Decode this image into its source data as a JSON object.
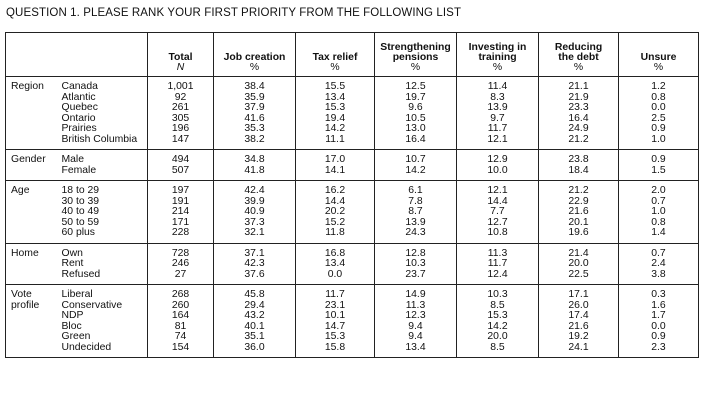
{
  "title": "QUESTION 1. PLEASE RANK YOUR FIRST PRIORITY FROM THE FOLLOWING LIST",
  "columns": [
    {
      "label": "Total",
      "unit": "N",
      "unit_italic": true
    },
    {
      "label": "Job creation",
      "unit": "%"
    },
    {
      "label": "Tax relief",
      "unit": "%"
    },
    {
      "label": "Strengthening pensions",
      "label_lines": [
        "Strengthening",
        "pensions"
      ],
      "unit": "%"
    },
    {
      "label": "Investing in training",
      "label_lines": [
        "Investing in",
        "training"
      ],
      "unit": "%"
    },
    {
      "label": "Reducing the debt",
      "label_lines": [
        "Reducing",
        "the debt"
      ],
      "unit": "%"
    },
    {
      "label": "Unsure",
      "unit": "%"
    }
  ],
  "groups": [
    {
      "name": "Region",
      "rows": [
        {
          "label": "Canada",
          "values": [
            "1,001",
            "38.4",
            "15.5",
            "12.5",
            "11.4",
            "21.1",
            "1.2"
          ]
        },
        {
          "label": "Atlantic",
          "values": [
            "92",
            "35.9",
            "13.4",
            "19.7",
            "8.3",
            "21.9",
            "0.8"
          ]
        },
        {
          "label": "Quebec",
          "values": [
            "261",
            "37.9",
            "15.3",
            "9.6",
            "13.9",
            "23.3",
            "0.0"
          ]
        },
        {
          "label": "Ontario",
          "values": [
            "305",
            "41.6",
            "19.4",
            "10.5",
            "9.7",
            "16.4",
            "2.5"
          ]
        },
        {
          "label": "Prairies",
          "values": [
            "196",
            "35.3",
            "14.2",
            "13.0",
            "11.7",
            "24.9",
            "0.9"
          ]
        },
        {
          "label": "British Columbia",
          "values": [
            "147",
            "38.2",
            "11.1",
            "16.4",
            "12.1",
            "21.2",
            "1.0"
          ]
        }
      ]
    },
    {
      "name": "Gender",
      "rows": [
        {
          "label": "Male",
          "values": [
            "494",
            "34.8",
            "17.0",
            "10.7",
            "12.9",
            "23.8",
            "0.9"
          ]
        },
        {
          "label": "Female",
          "values": [
            "507",
            "41.8",
            "14.1",
            "14.2",
            "10.0",
            "18.4",
            "1.5"
          ]
        }
      ]
    },
    {
      "name": "Age",
      "rows": [
        {
          "label": "18 to 29",
          "values": [
            "197",
            "42.4",
            "16.2",
            "6.1",
            "12.1",
            "21.2",
            "2.0"
          ]
        },
        {
          "label": "30 to 39",
          "values": [
            "191",
            "39.9",
            "14.4",
            "7.8",
            "14.4",
            "22.9",
            "0.7"
          ]
        },
        {
          "label": "40 to 49",
          "values": [
            "214",
            "40.9",
            "20.2",
            "8.7",
            "7.7",
            "21.6",
            "1.0"
          ]
        },
        {
          "label": "50 to 59",
          "values": [
            "171",
            "37.3",
            "15.2",
            "13.9",
            "12.7",
            "20.1",
            "0.8"
          ]
        },
        {
          "label": "60 plus",
          "values": [
            "228",
            "32.1",
            "11.8",
            "24.3",
            "10.8",
            "19.6",
            "1.4"
          ]
        }
      ]
    },
    {
      "name": "Home",
      "rows": [
        {
          "label": "Own",
          "values": [
            "728",
            "37.1",
            "16.8",
            "12.8",
            "11.3",
            "21.4",
            "0.7"
          ]
        },
        {
          "label": "Rent",
          "values": [
            "246",
            "42.3",
            "13.4",
            "10.3",
            "11.7",
            "20.0",
            "2.4"
          ]
        },
        {
          "label": "Refused",
          "values": [
            "27",
            "37.6",
            "0.0",
            "23.7",
            "12.4",
            "22.5",
            "3.8"
          ]
        }
      ]
    },
    {
      "name": "Vote profile",
      "name_lines": [
        "Vote",
        "profile"
      ],
      "rows": [
        {
          "label": "Liberal",
          "values": [
            "268",
            "45.8",
            "11.7",
            "14.9",
            "10.3",
            "17.1",
            "0.3"
          ]
        },
        {
          "label": "Conservative",
          "values": [
            "260",
            "29.4",
            "23.1",
            "11.3",
            "8.5",
            "26.0",
            "1.6"
          ]
        },
        {
          "label": "NDP",
          "values": [
            "164",
            "43.2",
            "10.1",
            "12.3",
            "15.3",
            "17.4",
            "1.7"
          ]
        },
        {
          "label": "Bloc",
          "values": [
            "81",
            "40.1",
            "14.7",
            "9.4",
            "14.2",
            "21.6",
            "0.0"
          ]
        },
        {
          "label": "Green",
          "values": [
            "74",
            "35.1",
            "15.3",
            "9.4",
            "20.0",
            "19.2",
            "0.9"
          ]
        },
        {
          "label": "Undecided",
          "values": [
            "154",
            "36.0",
            "15.8",
            "13.4",
            "8.5",
            "24.1",
            "2.3"
          ]
        }
      ]
    }
  ]
}
